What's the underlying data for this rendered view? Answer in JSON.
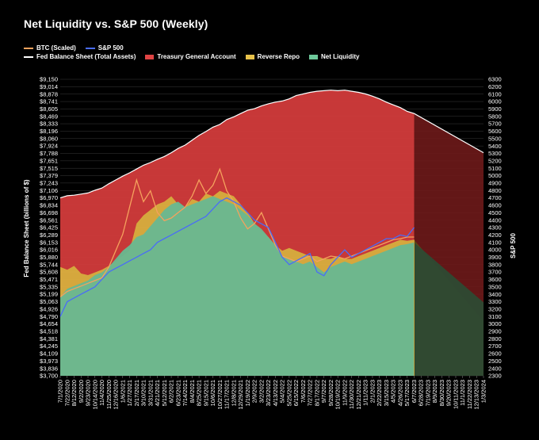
{
  "chart_data": {
    "type": "area",
    "title": "Net Liquidity vs. S&P 500 (Weekly)",
    "ylabel": "Fed Balance Sheet (billions of $)",
    "y2label": "S&P 500",
    "ylim": [
      3700,
      9150
    ],
    "y2lim": [
      2300,
      6300
    ],
    "legend": [
      {
        "name": "BTC (Scaled)",
        "color": "#f5a25d",
        "kind": "line"
      },
      {
        "name": "S&P 500",
        "color": "#4a6cf7",
        "kind": "line"
      },
      {
        "name": "Fed Balance Sheet (Total Assets)",
        "color": "#ffffff",
        "kind": "line"
      },
      {
        "name": "Treasury General Account",
        "color": "#e04444",
        "kind": "box"
      },
      {
        "name": "Reverse Repo",
        "color": "#e8c24a",
        "kind": "box"
      },
      {
        "name": "Net Liquidity",
        "color": "#6ec89a",
        "kind": "box"
      }
    ],
    "y_ticks": [
      9150,
      9014,
      8878,
      8741,
      8605,
      8469,
      8333,
      8196,
      8060,
      7924,
      7788,
      7651,
      7515,
      7379,
      7243,
      7106,
      6970,
      6834,
      6698,
      6561,
      6425,
      6289,
      6153,
      6016,
      5880,
      5744,
      5608,
      5471,
      5335,
      5199,
      5063,
      4926,
      4790,
      4654,
      4518,
      4381,
      4245,
      4109,
      3973,
      3836,
      3700
    ],
    "y_tick_labels": [
      "$9,150",
      "$9,014",
      "$8,878",
      "$8,741",
      "$8,605",
      "$8,469",
      "$8,333",
      "$8,196",
      "$8,060",
      "$7,924",
      "$7,788",
      "$7,651",
      "$7,515",
      "$7,379",
      "$7,243",
      "$7,106",
      "$6,970",
      "$6,834",
      "$6,698",
      "$6,561",
      "$6,425",
      "$6,289",
      "$6,153",
      "$6,016",
      "$5,880",
      "$5,744",
      "$5,608",
      "$5,471",
      "$5,335",
      "$5,199",
      "$5,063",
      "$4,926",
      "$4,790",
      "$4,654",
      "$4,518",
      "$4,381",
      "$4,245",
      "$4,109",
      "$3,973",
      "$3,836",
      "$3,700"
    ],
    "y2_ticks": [
      6300,
      6200,
      6100,
      6000,
      5900,
      5800,
      5700,
      5600,
      5500,
      5400,
      5300,
      5200,
      5100,
      5000,
      4900,
      4800,
      4700,
      4600,
      4500,
      4400,
      4300,
      4200,
      4100,
      4000,
      3900,
      3800,
      3700,
      3600,
      3500,
      3400,
      3300,
      3200,
      3100,
      3000,
      2900,
      2800,
      2700,
      2600,
      2500,
      2400,
      2300
    ],
    "x_tick_labels": [
      "7/1/2020",
      "7/22/2020",
      "8/12/2020",
      "9/2/2020",
      "9/23/2020",
      "10/14/2020",
      "11/4/2020",
      "11/25/2020",
      "12/16/2020",
      "1/6/2021",
      "1/27/2021",
      "2/17/2021",
      "3/10/2021",
      "3/31/2021",
      "4/21/2021",
      "5/12/2021",
      "6/2/2021",
      "6/23/2021",
      "7/14/2021",
      "8/4/2021",
      "8/25/2021",
      "9/15/2021",
      "10/6/2021",
      "10/27/2021",
      "11/17/2021",
      "12/8/2021",
      "12/29/2021",
      "1/19/2022",
      "2/9/2022",
      "3/2/2022",
      "3/23/2022",
      "4/13/2022",
      "5/4/2022",
      "5/25/2022",
      "6/15/2022",
      "7/6/2022",
      "7/27/2022",
      "8/17/2022",
      "9/7/2022",
      "9/28/2022",
      "10/19/2022",
      "11/9/2022",
      "11/30/2022",
      "12/21/2022",
      "1/11/2023",
      "2/1/2023",
      "2/22/2023",
      "3/15/2023",
      "4/5/2023",
      "4/26/2023",
      "5/17/2023",
      "6/7/2023",
      "6/28/2023",
      "7/19/2023",
      "8/9/2023",
      "8/30/2023",
      "9/20/2023",
      "10/11/2023",
      "11/1/2023",
      "11/22/2023",
      "12/13/2023",
      "1/3/2024"
    ],
    "fed_balance_sheet": [
      6970,
      7010,
      7020,
      7040,
      7060,
      7110,
      7150,
      7230,
      7300,
      7370,
      7430,
      7500,
      7570,
      7620,
      7680,
      7730,
      7800,
      7880,
      7940,
      8030,
      8120,
      8190,
      8270,
      8320,
      8410,
      8460,
      8520,
      8580,
      8610,
      8660,
      8700,
      8730,
      8750,
      8790,
      8850,
      8880,
      8910,
      8930,
      8940,
      8950,
      8940,
      8950,
      8930,
      8910,
      8880,
      8840,
      8790,
      8730,
      8680,
      8630,
      8560,
      8520,
      8510,
      8460,
      8420,
      8400,
      8360,
      8330,
      8300,
      8260,
      8230,
      8200
    ],
    "fed_balance_sheet_forecast_end": 7800,
    "tga_floor": [
      5700,
      5650,
      5720,
      5580,
      5550,
      5600,
      5650,
      5720,
      5800,
      5900,
      6000,
      6500,
      6650,
      6750,
      6850,
      6900,
      7000,
      6850,
      6800,
      6950,
      6900,
      7050,
      7000,
      7100,
      7050,
      7000,
      6850,
      6700,
      6500,
      6350,
      6250,
      6100,
      6000,
      6050,
      6000,
      5950,
      5900,
      5900,
      5850,
      5850,
      5900,
      5850,
      5850,
      5900,
      5950,
      6000,
      6050,
      6100,
      6150,
      6200,
      6180,
      6200
    ],
    "net_liquidity": [
      5150,
      5300,
      5350,
      5400,
      5450,
      5550,
      5600,
      5700,
      5850,
      6000,
      6100,
      6250,
      6300,
      6450,
      6600,
      6750,
      6850,
      6900,
      6800,
      6850,
      6900,
      6950,
      7000,
      6950,
      6900,
      6850,
      6750,
      6650,
      6500,
      6400,
      6250,
      6100,
      5900,
      5850,
      5800,
      5750,
      5800,
      5700,
      5600,
      5700,
      5750,
      5800,
      5750,
      5800,
      5850,
      5900,
      5950,
      6000,
      6050,
      6100,
      6120,
      6150
    ],
    "sp500": [
      3100,
      3300,
      3350,
      3400,
      3450,
      3500,
      3600,
      3700,
      3750,
      3800,
      3850,
      3900,
      3950,
      4000,
      4100,
      4150,
      4200,
      4250,
      4300,
      4350,
      4400,
      4450,
      4550,
      4650,
      4700,
      4650,
      4600,
      4500,
      4400,
      4350,
      4300,
      4100,
      3900,
      3800,
      3850,
      3900,
      3950,
      3700,
      3650,
      3800,
      3900,
      4000,
      3900,
      3950,
      4000,
      4050,
      4100,
      4150,
      4150,
      4200,
      4180,
      4300
    ],
    "btc_scaled": [
      5150,
      5250,
      5300,
      5350,
      5400,
      5450,
      5500,
      5700,
      6000,
      6300,
      6800,
      7300,
      6900,
      7100,
      6700,
      6550,
      6600,
      6700,
      6800,
      7000,
      7300,
      7050,
      7200,
      7500,
      7100,
      6900,
      6600,
      6400,
      6500,
      6700,
      6400,
      6100,
      5900,
      5850,
      5800,
      5850,
      5900,
      5800,
      5850,
      5900,
      5880,
      5850,
      5900,
      5950,
      6000,
      6050,
      6100,
      6150,
      6200,
      6220,
      6250,
      6250
    ]
  }
}
